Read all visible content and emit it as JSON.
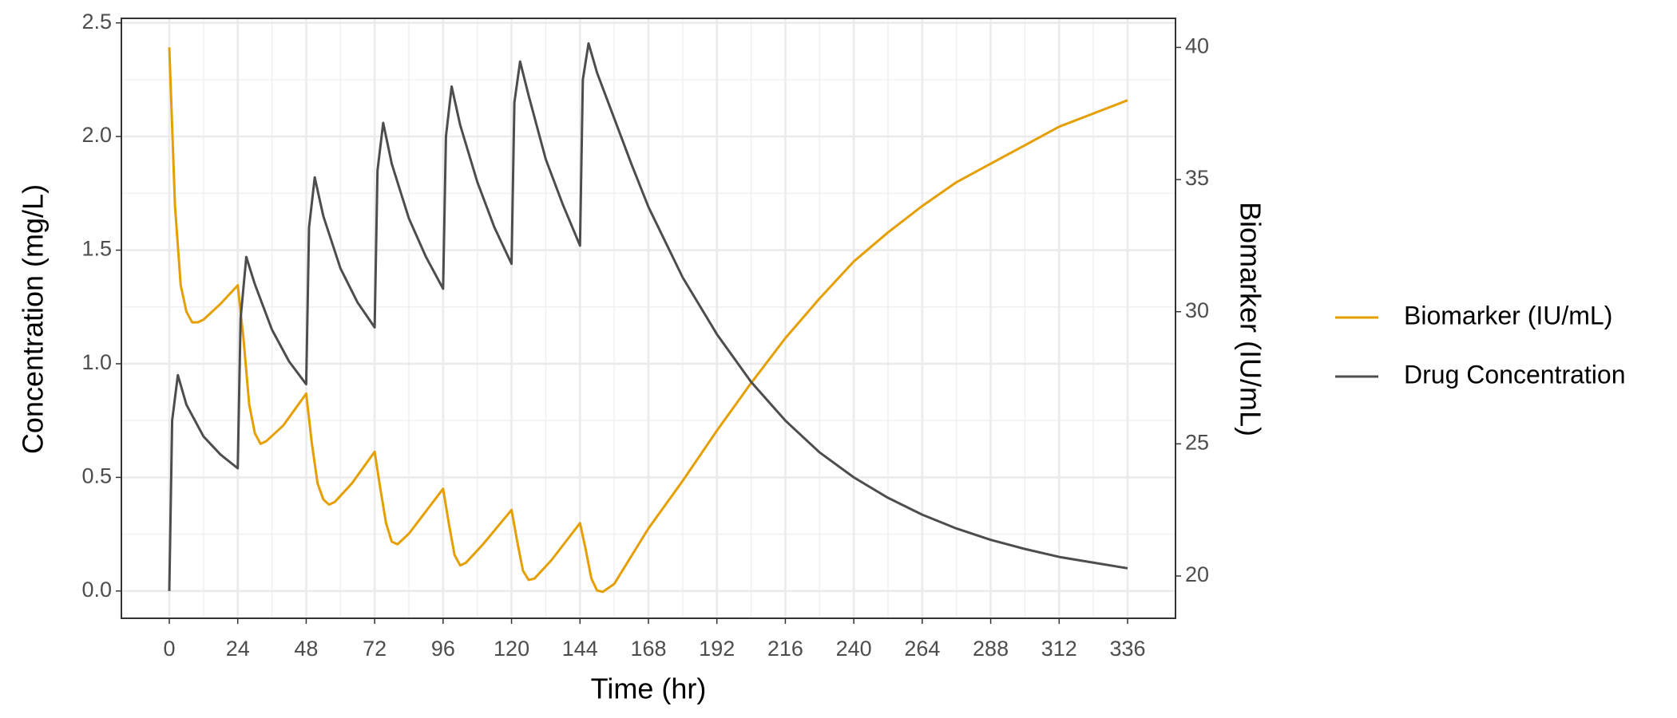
{
  "chart_data": {
    "type": "line",
    "x_label": "Time (hr)",
    "y_label": "Concentration (mg/L)",
    "y2_label": "Biomarker (IU/mL)",
    "xlim": [
      -16.8,
      352.8
    ],
    "xticks": [
      0,
      24,
      48,
      72,
      96,
      120,
      144,
      168,
      192,
      216,
      240,
      264,
      288,
      312,
      336
    ],
    "ylim": [
      -0.12,
      2.52
    ],
    "yticks": [
      {
        "value": 0,
        "label": "0.0"
      },
      0.5,
      {
        "value": 1,
        "label": "1.0"
      },
      1.5,
      {
        "value": 2,
        "label": "2.0"
      },
      2.5
    ],
    "y2lim": [
      18.4,
      41.1
    ],
    "y2ticks": [
      20,
      25,
      30,
      35,
      40
    ],
    "grid": true,
    "minor_grid": true,
    "legend": "right",
    "series": [
      {
        "name": "Biomarker (IU/mL)",
        "color": "#E69F00",
        "axis": "y2",
        "x": [
          0,
          2,
          4,
          6,
          8,
          10,
          12,
          18,
          24,
          26,
          28,
          30,
          32,
          34,
          40,
          48,
          50,
          52,
          54,
          56,
          58,
          64,
          72,
          74,
          76,
          78,
          80,
          84,
          96,
          98,
          100,
          102,
          104,
          110,
          120,
          122,
          124,
          126,
          128,
          134,
          144,
          146,
          148,
          150,
          152,
          156,
          168,
          180,
          192,
          204,
          216,
          228,
          240,
          252,
          264,
          276,
          288,
          300,
          312,
          324,
          336
        ],
        "values": [
          40,
          34,
          31,
          30,
          29.6,
          29.6,
          29.7,
          30.3,
          31.0,
          29,
          26.5,
          25.4,
          25.0,
          25.1,
          25.7,
          26.9,
          25,
          23.5,
          22.9,
          22.7,
          22.8,
          23.5,
          24.7,
          23.3,
          22,
          21.3,
          21.2,
          21.6,
          23.3,
          22,
          20.8,
          20.4,
          20.5,
          21.2,
          22.5,
          21.3,
          20.2,
          19.85,
          19.9,
          20.6,
          22.0,
          21,
          19.9,
          19.45,
          19.4,
          19.7,
          21.8,
          23.6,
          25.5,
          27.3,
          29.0,
          30.5,
          31.9,
          33.0,
          34.0,
          34.9,
          35.6,
          36.3,
          37.0,
          37.5,
          38.0
        ]
      },
      {
        "name": "Drug Concentration",
        "color": "#4D4D4D",
        "x": [
          0,
          1,
          3,
          6,
          12,
          18,
          24,
          25,
          27,
          30,
          36,
          42,
          48,
          49,
          51,
          54,
          60,
          66,
          72,
          73,
          75,
          78,
          84,
          90,
          96,
          97,
          99,
          102,
          108,
          114,
          120,
          121,
          123,
          126,
          132,
          138,
          144,
          145,
          147,
          150,
          156,
          162,
          168,
          180,
          192,
          204,
          216,
          228,
          240,
          252,
          264,
          276,
          288,
          300,
          312,
          324,
          336
        ],
        "values": [
          0,
          0.75,
          0.95,
          0.82,
          0.68,
          0.6,
          0.54,
          1.2,
          1.47,
          1.35,
          1.15,
          1.01,
          0.91,
          1.6,
          1.82,
          1.65,
          1.42,
          1.27,
          1.16,
          1.85,
          2.06,
          1.88,
          1.64,
          1.47,
          1.33,
          2.0,
          2.22,
          2.05,
          1.8,
          1.6,
          1.44,
          2.15,
          2.33,
          2.18,
          1.9,
          1.7,
          1.52,
          2.25,
          2.41,
          2.28,
          2.08,
          1.88,
          1.69,
          1.38,
          1.13,
          0.92,
          0.75,
          0.61,
          0.5,
          0.41,
          0.336,
          0.275,
          0.225,
          0.185,
          0.15,
          0.125,
          0.1
        ]
      }
    ]
  }
}
